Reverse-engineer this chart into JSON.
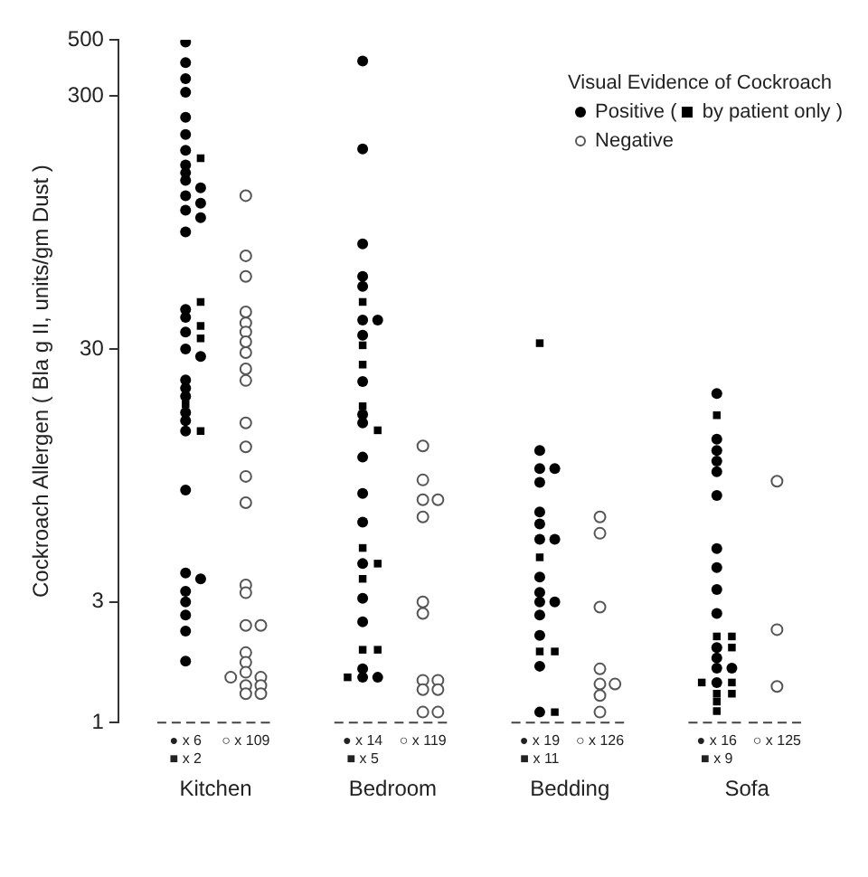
{
  "chart_data": {
    "type": "scatter",
    "ylabel": "Cockroach Allergen ( Bla g II, units/gm Dust )",
    "legend_title": "Visual Evidence of Cockroach",
    "categories": [
      "Kitchen",
      "Bedroom",
      "Bedding",
      "Sofa"
    ],
    "log": true,
    "ylim": [
      1,
      500
    ],
    "yticks": [
      1,
      3,
      30,
      300,
      500
    ],
    "grid": false,
    "legend": "top right",
    "series": [
      {
        "name": "Positive (",
        "color": "#000000",
        "marker": "circle",
        "x": [
          "Kitchen",
          "Kitchen",
          "Kitchen",
          "Kitchen",
          "Kitchen",
          "Kitchen",
          "Kitchen",
          "Kitchen",
          "Kitchen",
          "Kitchen",
          "Kitchen",
          "Kitchen",
          "Kitchen",
          "Kitchen",
          "Kitchen",
          "Kitchen",
          "Kitchen",
          "Kitchen",
          "Kitchen",
          "Kitchen",
          "Kitchen",
          "Kitchen",
          "Kitchen",
          "Kitchen",
          "Kitchen",
          "Kitchen",
          "Kitchen",
          "Kitchen",
          "Kitchen",
          "Kitchen",
          "Kitchen",
          "Kitchen",
          "Kitchen",
          "Kitchen",
          "Kitchen",
          "Bedroom",
          "Bedroom",
          "Bedroom",
          "Bedroom",
          "Bedroom",
          "Bedroom",
          "Bedroom",
          "Bedroom",
          "Bedroom",
          "Bedroom",
          "Bedroom",
          "Bedroom",
          "Bedroom",
          "Bedroom",
          "Bedroom",
          "Bedroom",
          "Bedroom",
          "Bedroom",
          "Bedroom",
          "Bedroom",
          "Bedding",
          "Bedding",
          "Bedding",
          "Bedding",
          "Bedding",
          "Bedding",
          "Bedding",
          "Bedding",
          "Bedding",
          "Bedding",
          "Bedding",
          "Bedding",
          "Bedding",
          "Bedding",
          "Bedding",
          "Bedding",
          "Sofa",
          "Sofa",
          "Sofa",
          "Sofa",
          "Sofa",
          "Sofa",
          "Sofa",
          "Sofa",
          "Sofa",
          "Sofa",
          "Sofa",
          "Sofa",
          "Sofa",
          "Sofa",
          "Sofa"
        ],
        "values": [
          490,
          406,
          351,
          310,
          247,
          211,
          183,
          160,
          149,
          139,
          130,
          121,
          113,
          106,
          99,
          87,
          43,
          40,
          35,
          30,
          28,
          22.6,
          21,
          19.5,
          16.8,
          15.6,
          14.2,
          8.3,
          3.9,
          3.7,
          3.3,
          3.0,
          2.66,
          2.3,
          1.75,
          412,
          185,
          78,
          58,
          53,
          39,
          39,
          34,
          22.3,
          16.5,
          15.3,
          11.2,
          8.05,
          6.2,
          4.25,
          3.1,
          2.5,
          1.63,
          1.51,
          1.51,
          11.9,
          10.1,
          10.1,
          8.9,
          6.8,
          6.1,
          5.3,
          5.3,
          3.76,
          3.27,
          3.0,
          3.0,
          2.66,
          2.21,
          1.67,
          1.1,
          20,
          13.2,
          11.9,
          10.8,
          9.8,
          7.9,
          4.87,
          4.1,
          3.36,
          2.7,
          1.98,
          1.8,
          1.64,
          1.64,
          1.44
        ]
      },
      {
        "name": "by patient only )",
        "color": "#000000",
        "marker": "square",
        "x": [
          "Kitchen",
          "Kitchen",
          "Kitchen",
          "Kitchen",
          "Kitchen",
          "Kitchen",
          "Bedroom",
          "Bedroom",
          "Bedroom",
          "Bedroom",
          "Bedroom",
          "Bedroom",
          "Bedroom",
          "Bedroom",
          "Bedroom",
          "Bedroom",
          "Bedroom",
          "Bedding",
          "Bedding",
          "Bedding",
          "Bedding",
          "Bedding",
          "Sofa",
          "Sofa",
          "Sofa",
          "Sofa",
          "Sofa",
          "Sofa",
          "Sofa",
          "Sofa",
          "Sofa",
          "Sofa"
        ],
        "values": [
          170,
          46,
          37,
          33,
          18.1,
          14.2,
          46,
          31,
          26,
          17.8,
          14.3,
          4.9,
          4.25,
          3.7,
          1.94,
          1.94,
          1.51,
          31.6,
          4.5,
          1.91,
          1.91,
          1.1,
          16.4,
          2.19,
          2.19,
          1.98,
          1.44,
          1.44,
          1.3,
          1.3,
          1.21,
          1.11
        ]
      },
      {
        "name": "Negative",
        "color": "#555555",
        "marker": "circle",
        "x": [
          "Kitchen",
          "Kitchen",
          "Kitchen",
          "Kitchen",
          "Kitchen",
          "Kitchen",
          "Kitchen",
          "Kitchen",
          "Kitchen",
          "Kitchen",
          "Kitchen",
          "Kitchen",
          "Kitchen",
          "Kitchen",
          "Kitchen",
          "Kitchen",
          "Kitchen",
          "Kitchen",
          "Kitchen",
          "Kitchen",
          "Kitchen",
          "Kitchen",
          "Kitchen",
          "Kitchen",
          "Kitchen",
          "Kitchen",
          "Kitchen",
          "Bedroom",
          "Bedroom",
          "Bedroom",
          "Bedroom",
          "Bedroom",
          "Bedroom",
          "Bedroom",
          "Bedroom",
          "Bedroom",
          "Bedroom",
          "Bedroom",
          "Bedroom",
          "Bedroom",
          "Bedding",
          "Bedding",
          "Bedding",
          "Bedding",
          "Bedding",
          "Bedding",
          "Bedding",
          "Bedding",
          "Sofa",
          "Sofa",
          "Sofa"
        ],
        "values": [
          121,
          70,
          58,
          42,
          38,
          35,
          32,
          29,
          25,
          22.5,
          15.3,
          12.3,
          9.4,
          7.4,
          3.5,
          3.26,
          2.42,
          2.42,
          1.89,
          1.73,
          1.58,
          1.51,
          1.51,
          1.4,
          1.4,
          1.3,
          1.3,
          12.4,
          9.1,
          7.6,
          7.6,
          6.5,
          3.0,
          2.7,
          1.47,
          1.47,
          1.35,
          1.35,
          1.1,
          1.1,
          6.5,
          5.6,
          2.86,
          1.63,
          1.42,
          1.42,
          1.28,
          1.1,
          9.0,
          2.33,
          1.39
        ]
      }
    ],
    "ref_lines": [
      {
        "axis": "y",
        "value": 1,
        "line_style": "dashed"
      }
    ],
    "annotations": [
      "● x 6",
      "■ x 2",
      "○ x 109",
      "● x 14",
      "■ x 5",
      "○ x 119",
      "● x 19",
      "■ x 11",
      "○ x 126",
      "● x 16",
      "■ x 9",
      "○ x 125"
    ]
  }
}
